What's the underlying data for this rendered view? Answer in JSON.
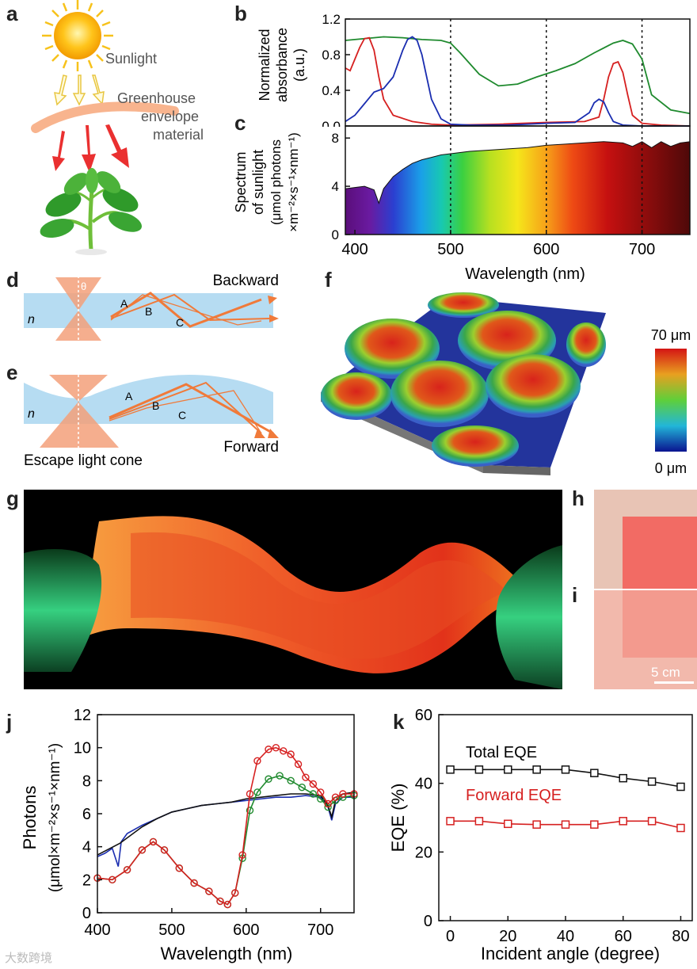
{
  "panels": {
    "a": {
      "label": "a",
      "sunlight": "Sunlight",
      "material_line1": "Greenhouse",
      "material_line2": "envelope",
      "material_line3": "material"
    },
    "b": {
      "label": "b",
      "ylabel_line1": "Normalized",
      "ylabel_line2": "absorbance",
      "ylabel_line3": "(a.u.)"
    },
    "c": {
      "label": "c",
      "ylabel_line1": "Spectrum",
      "ylabel_line2": "of sunlight",
      "ylabel_line3": "(μmol photons",
      "ylabel_line4": "×m⁻²×s⁻¹×nm⁻¹)",
      "xlabel": "Wavelength (nm)"
    },
    "d": {
      "label": "d",
      "title": "Backward",
      "n": "n",
      "theta": "θ",
      "ray_a": "A",
      "ray_b": "B",
      "ray_c": "C"
    },
    "e": {
      "label": "e",
      "title": "Forward",
      "n": "n",
      "cone": "Escape light cone",
      "ray_a": "A",
      "ray_b": "B",
      "ray_c": "C"
    },
    "f": {
      "label": "f",
      "scale_max": "70 μm",
      "scale_min": "0 μm"
    },
    "g": {
      "label": "g"
    },
    "h": {
      "label": "h"
    },
    "i": {
      "label": "i",
      "scale_bar": "5 cm"
    },
    "j": {
      "label": "j",
      "ylabel_line1": "Photons",
      "ylabel_line2": "(μmol×m⁻²×s⁻¹×nm⁻¹)",
      "xlabel": "Wavelength (nm)"
    },
    "k": {
      "label": "k",
      "ylabel": "EQE (%)",
      "xlabel": "Incident angle (degree)",
      "total_label": "Total EQE",
      "forward_label": "Forward EQE"
    }
  },
  "watermark": "大数跨境",
  "colors": {
    "red": "#d62020",
    "green": "#1f8a2e",
    "blue": "#1a2db0",
    "black": "#111111",
    "orange": "#f07a3a"
  },
  "chart_data": [
    {
      "id": "b",
      "type": "line",
      "title": "",
      "xlabel": "",
      "ylabel": "Normalized absorbance (a.u.)",
      "xlim": [
        390,
        750
      ],
      "ylim": [
        0,
        1.2
      ],
      "yticks": [
        "0.0",
        "0.4",
        "0.8",
        "1.2"
      ],
      "vlines": [
        500,
        600,
        700
      ],
      "series": [
        {
          "name": "green",
          "color": "#1f8a2e",
          "x": [
            390,
            410,
            430,
            450,
            470,
            490,
            500,
            510,
            530,
            550,
            570,
            590,
            610,
            630,
            650,
            670,
            680,
            690,
            700,
            710,
            730,
            750
          ],
          "y": [
            0.96,
            0.98,
            1.0,
            0.99,
            0.97,
            0.96,
            0.93,
            0.82,
            0.58,
            0.45,
            0.47,
            0.55,
            0.62,
            0.7,
            0.82,
            0.93,
            0.96,
            0.92,
            0.75,
            0.35,
            0.18,
            0.14
          ]
        },
        {
          "name": "red",
          "color": "#d62020",
          "x": [
            390,
            395,
            400,
            405,
            410,
            415,
            420,
            425,
            430,
            440,
            460,
            480,
            500,
            550,
            600,
            640,
            655,
            660,
            665,
            670,
            675,
            680,
            685,
            690,
            700,
            720,
            750
          ],
          "y": [
            0.65,
            0.62,
            0.75,
            0.88,
            0.98,
            0.99,
            0.85,
            0.55,
            0.3,
            0.12,
            0.05,
            0.02,
            0.01,
            0.02,
            0.04,
            0.05,
            0.1,
            0.3,
            0.55,
            0.7,
            0.72,
            0.6,
            0.35,
            0.12,
            0.03,
            0.01,
            0.0
          ]
        },
        {
          "name": "blue",
          "color": "#1a2db0",
          "x": [
            390,
            400,
            410,
            420,
            430,
            440,
            450,
            455,
            460,
            465,
            470,
            475,
            480,
            490,
            500,
            520,
            560,
            600,
            630,
            645,
            650,
            655,
            660,
            665,
            670,
            680,
            700,
            750
          ],
          "y": [
            0.05,
            0.12,
            0.25,
            0.38,
            0.42,
            0.55,
            0.85,
            0.97,
            1.0,
            0.96,
            0.8,
            0.55,
            0.3,
            0.08,
            0.02,
            0.01,
            0.01,
            0.03,
            0.04,
            0.15,
            0.26,
            0.3,
            0.27,
            0.15,
            0.05,
            0.01,
            0.0,
            0.0
          ]
        }
      ]
    },
    {
      "id": "c",
      "type": "area",
      "xlabel": "Wavelength (nm)",
      "ylabel": "Spectrum of sunlight",
      "xlim": [
        390,
        750
      ],
      "ylim": [
        0,
        9
      ],
      "xticks": [
        "400",
        "500",
        "600",
        "700"
      ],
      "yticks": [
        "0",
        "4",
        "8"
      ],
      "vlines": [
        500,
        600,
        700
      ],
      "series": [
        {
          "name": "sunlight",
          "x": [
            390,
            400,
            410,
            420,
            425,
            430,
            440,
            450,
            460,
            470,
            480,
            490,
            500,
            520,
            540,
            560,
            580,
            600,
            620,
            640,
            660,
            680,
            690,
            700,
            710,
            720,
            730,
            740,
            750
          ],
          "y": [
            3.8,
            3.9,
            4.0,
            3.7,
            2.6,
            3.8,
            4.8,
            5.4,
            5.9,
            6.2,
            6.4,
            6.6,
            6.7,
            6.9,
            7.0,
            7.1,
            7.2,
            7.4,
            7.5,
            7.6,
            7.7,
            7.6,
            7.3,
            7.7,
            7.2,
            7.7,
            7.3,
            7.6,
            7.7
          ]
        }
      ]
    },
    {
      "id": "j",
      "type": "line",
      "xlabel": "Wavelength (nm)",
      "ylabel": "Photons (μmol×m⁻²×s⁻¹×nm⁻¹)",
      "xlim": [
        400,
        745
      ],
      "ylim": [
        0,
        12
      ],
      "xticks": [
        "400",
        "500",
        "600",
        "700"
      ],
      "yticks": [
        "0",
        "2",
        "4",
        "6",
        "8",
        "10",
        "12"
      ],
      "series": [
        {
          "name": "blue",
          "color": "#1a2db0",
          "x": [
            400,
            410,
            420,
            428,
            432,
            440,
            460,
            480,
            500,
            520,
            540,
            560,
            580,
            600,
            620,
            640,
            660,
            680,
            700,
            710,
            715,
            720,
            730,
            745
          ],
          "y": [
            3.4,
            3.6,
            3.9,
            2.8,
            4.3,
            4.8,
            5.3,
            5.7,
            6.1,
            6.3,
            6.5,
            6.6,
            6.7,
            6.8,
            6.9,
            7.0,
            7.0,
            7.1,
            7.0,
            6.4,
            5.6,
            6.6,
            7.0,
            7.0
          ]
        },
        {
          "name": "black",
          "color": "#111111",
          "x": [
            400,
            430,
            460,
            480,
            500,
            520,
            540,
            560,
            580,
            600,
            620,
            640,
            660,
            680,
            700,
            710,
            715,
            720,
            730,
            745
          ],
          "y": [
            3.5,
            4.2,
            5.2,
            5.7,
            6.1,
            6.3,
            6.5,
            6.6,
            6.7,
            6.9,
            7.0,
            7.1,
            7.2,
            7.2,
            7.1,
            6.5,
            5.8,
            6.8,
            7.2,
            7.3
          ]
        },
        {
          "name": "green",
          "color": "#1f8a2e",
          "x": [
            400,
            420,
            440,
            460,
            475,
            490,
            510,
            530,
            550,
            565,
            575,
            585,
            595,
            605,
            615,
            630,
            645,
            660,
            675,
            690,
            700,
            710,
            720,
            730,
            745
          ],
          "y": [
            2.1,
            2.0,
            2.6,
            3.8,
            4.3,
            3.8,
            2.7,
            1.8,
            1.3,
            0.7,
            0.5,
            1.2,
            3.3,
            6.2,
            7.3,
            8.1,
            8.3,
            8.0,
            7.6,
            7.2,
            6.9,
            6.4,
            6.8,
            7.0,
            7.1
          ]
        },
        {
          "name": "red",
          "color": "#d62020",
          "x": [
            400,
            420,
            440,
            460,
            475,
            490,
            510,
            530,
            550,
            565,
            575,
            585,
            595,
            605,
            615,
            630,
            640,
            650,
            660,
            670,
            680,
            690,
            700,
            710,
            720,
            730,
            745
          ],
          "y": [
            2.1,
            2.0,
            2.6,
            3.8,
            4.3,
            3.8,
            2.7,
            1.8,
            1.3,
            0.7,
            0.5,
            1.2,
            3.5,
            7.2,
            9.2,
            9.9,
            10.0,
            9.8,
            9.6,
            9.0,
            8.2,
            7.8,
            7.3,
            6.6,
            7.0,
            7.2,
            7.2
          ]
        }
      ]
    },
    {
      "id": "k",
      "type": "line",
      "xlabel": "Incident angle (degree)",
      "ylabel": "EQE (%)",
      "xlim": [
        -4,
        84
      ],
      "ylim": [
        0,
        60
      ],
      "xticks": [
        "0",
        "20",
        "40",
        "60",
        "80"
      ],
      "yticks": [
        "0",
        "20",
        "40",
        "60"
      ],
      "x": [
        0,
        10,
        20,
        30,
        40,
        50,
        60,
        70,
        80
      ],
      "series": [
        {
          "name": "Total EQE",
          "color": "#111111",
          "values": [
            44,
            44,
            44,
            44,
            44,
            43,
            41.5,
            40.5,
            39
          ]
        },
        {
          "name": "Forward EQE",
          "color": "#d62020",
          "values": [
            29,
            29,
            28.2,
            28,
            28,
            28,
            29,
            29,
            27
          ]
        }
      ]
    }
  ]
}
